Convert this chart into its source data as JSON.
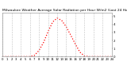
{
  "title": "Milwaukee Weather Average Solar Radiation per Hour W/m2 (Last 24 Hours)",
  "title_fontsize": 3.2,
  "x_hours": [
    0,
    1,
    2,
    3,
    4,
    5,
    6,
    7,
    8,
    9,
    10,
    11,
    12,
    13,
    14,
    15,
    16,
    17,
    18,
    19,
    20,
    21,
    22,
    23,
    24
  ],
  "y_values": [
    0,
    0,
    0,
    0,
    0,
    0,
    0,
    15,
    75,
    175,
    310,
    430,
    480,
    450,
    370,
    265,
    155,
    55,
    8,
    0,
    0,
    0,
    0,
    0,
    0
  ],
  "line_color": "#ff0000",
  "line_style": "dotted",
  "line_width": 0.9,
  "bg_color": "#ffffff",
  "plot_bg_color": "#ffffff",
  "grid_color": "#bbbbbb",
  "grid_style": "--",
  "ylim": [
    0,
    550
  ],
  "xlim": [
    0,
    24
  ],
  "ytick_labels": [
    "0",
    "1",
    "2",
    "3",
    "4",
    "5"
  ],
  "ytick_values": [
    0,
    100,
    200,
    300,
    400,
    500
  ],
  "xtick_values": [
    0,
    1,
    2,
    3,
    4,
    5,
    6,
    7,
    8,
    9,
    10,
    11,
    12,
    13,
    14,
    15,
    16,
    17,
    18,
    19,
    20,
    21,
    22,
    23,
    24
  ],
  "tick_fontsize": 2.8,
  "grid_x_ticks": [
    0,
    2,
    4,
    6,
    8,
    10,
    12,
    14,
    16,
    18,
    20,
    22,
    24
  ]
}
